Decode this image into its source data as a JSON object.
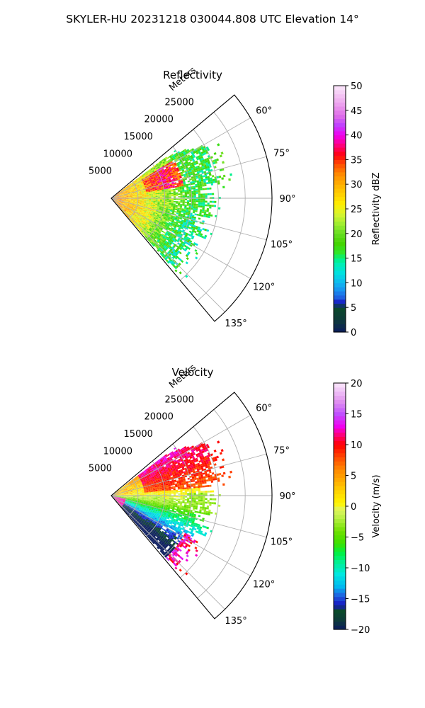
{
  "suptitle": "SKYLER-HU  20231218  030044.808 UTC Elevation 14°",
  "colors": {
    "background": "#ffffff",
    "grid": "#b0b0b0",
    "axis": "#000000"
  },
  "chart_data": [
    {
      "type": "polar-sector",
      "title": "Reflectivity",
      "radial_label": "Meters",
      "r_ticks": [
        5000,
        10000,
        15000,
        20000,
        25000
      ],
      "r_tick_labels": [
        "5000",
        "10000",
        "15000",
        "20000",
        "25000"
      ],
      "r_max": 30000,
      "theta_ticks": [
        60,
        75,
        90,
        105,
        120,
        135
      ],
      "theta_tick_labels": [
        "60°",
        "75°",
        "90°",
        "105°",
        "120°",
        "135°"
      ],
      "theta_range": [
        50,
        140
      ],
      "colorbar": {
        "label": "Reflectivity dBZ",
        "range": [
          0,
          50
        ],
        "ticks": [
          0,
          5,
          10,
          15,
          20,
          25,
          30,
          35,
          40,
          45,
          50
        ],
        "tick_labels": [
          "0",
          "5",
          "10",
          "15",
          "20",
          "25",
          "30",
          "35",
          "40",
          "45",
          "50"
        ],
        "colormap": "nws_reflectivity"
      },
      "field": {
        "near_range_value": 32,
        "far_range_value": 17,
        "strong_core": {
          "range": [
            9000,
            12000
          ],
          "azimuth": [
            62,
            78
          ],
          "value": 37
        },
        "coverage_max_range": 21000
      }
    },
    {
      "type": "polar-sector",
      "title": "Velocity",
      "radial_label": "Meters",
      "r_ticks": [
        5000,
        10000,
        15000,
        20000,
        25000
      ],
      "r_tick_labels": [
        "5000",
        "10000",
        "15000",
        "20000",
        "25000"
      ],
      "r_max": 30000,
      "theta_ticks": [
        60,
        75,
        90,
        105,
        120,
        135
      ],
      "theta_tick_labels": [
        "60°",
        "75°",
        "90°",
        "105°",
        "120°",
        "135°"
      ],
      "theta_range": [
        50,
        140
      ],
      "colorbar": {
        "label": "Velocity (m/s)",
        "range": [
          -20,
          20
        ],
        "ticks": [
          -20,
          -15,
          -10,
          -5,
          0,
          5,
          10,
          15,
          20
        ],
        "tick_labels": [
          "−20",
          "−15",
          "−10",
          "−5",
          "0",
          "5",
          "10",
          "15",
          "20"
        ],
        "colormap": "velocity_diverging"
      },
      "field": {
        "positive_lobe_north": {
          "azimuth": [
            55,
            82
          ],
          "value": 12
        },
        "zero_band": {
          "azimuth": [
            85,
            100
          ],
          "value": 0
        },
        "negative_lobe_south": {
          "azimuth": [
            105,
            125
          ],
          "value": -10
        },
        "far_south_positive": {
          "azimuth": [
            118,
            130
          ],
          "range": [
            16000,
            20000
          ],
          "value": 12
        },
        "coverage_max_range": 21000
      }
    }
  ]
}
